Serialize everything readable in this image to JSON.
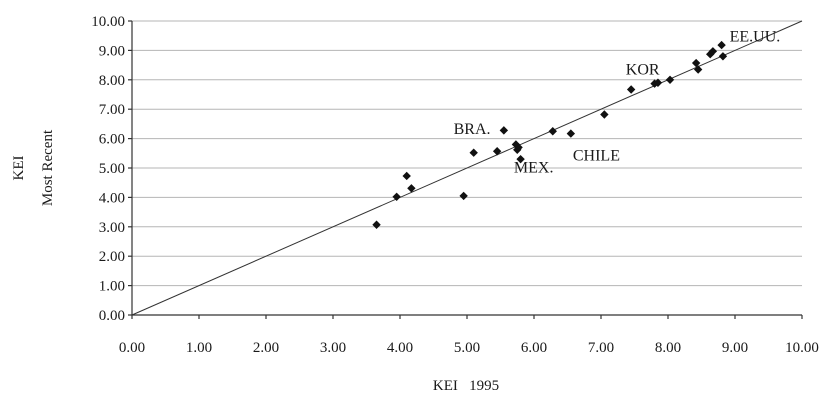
{
  "chart_data": {
    "type": "scatter",
    "title": "",
    "xlabel": "KEI   1995",
    "ylabel_lines": [
      "KEI",
      "Most Recent"
    ],
    "xlim": [
      0,
      10
    ],
    "ylim": [
      0,
      10
    ],
    "x_ticks": [
      "0.00",
      "1.00",
      "2.00",
      "3.00",
      "4.00",
      "5.00",
      "6.00",
      "7.00",
      "8.00",
      "9.00",
      "10.00"
    ],
    "y_ticks": [
      "0.00",
      "1.00",
      "2.00",
      "3.00",
      "4.00",
      "5.00",
      "6.00",
      "7.00",
      "8.00",
      "9.00",
      "10.00"
    ],
    "grid": "horizontal",
    "reference_line": {
      "from": [
        0,
        0
      ],
      "to": [
        10,
        10
      ]
    },
    "points": [
      {
        "x": 3.65,
        "y": 3.07
      },
      {
        "x": 3.95,
        "y": 4.02
      },
      {
        "x": 4.1,
        "y": 4.73
      },
      {
        "x": 4.17,
        "y": 4.31
      },
      {
        "x": 4.95,
        "y": 4.05
      },
      {
        "x": 5.1,
        "y": 5.52
      },
      {
        "x": 5.45,
        "y": 5.57
      },
      {
        "x": 5.55,
        "y": 6.28
      },
      {
        "x": 5.73,
        "y": 5.8
      },
      {
        "x": 5.75,
        "y": 5.62
      },
      {
        "x": 5.77,
        "y": 5.7
      },
      {
        "x": 5.8,
        "y": 5.3
      },
      {
        "x": 6.28,
        "y": 6.25
      },
      {
        "x": 6.55,
        "y": 6.17
      },
      {
        "x": 7.05,
        "y": 6.82
      },
      {
        "x": 7.45,
        "y": 7.67
      },
      {
        "x": 7.8,
        "y": 7.87
      },
      {
        "x": 7.85,
        "y": 7.9
      },
      {
        "x": 8.03,
        "y": 8.0
      },
      {
        "x": 8.42,
        "y": 8.57
      },
      {
        "x": 8.45,
        "y": 8.35
      },
      {
        "x": 8.63,
        "y": 8.87
      },
      {
        "x": 8.67,
        "y": 8.97
      },
      {
        "x": 8.8,
        "y": 9.18
      },
      {
        "x": 8.82,
        "y": 8.8
      }
    ],
    "annotations": [
      {
        "text": "BRA.",
        "x": 4.8,
        "y": 6.15
      },
      {
        "text": "MEX.",
        "x": 5.7,
        "y": 4.85
      },
      {
        "text": "CHILE",
        "x": 6.58,
        "y": 5.25
      },
      {
        "text": "KOR",
        "x": 7.37,
        "y": 8.18
      },
      {
        "text": "EE.UU.",
        "x": 8.92,
        "y": 9.3
      }
    ]
  }
}
